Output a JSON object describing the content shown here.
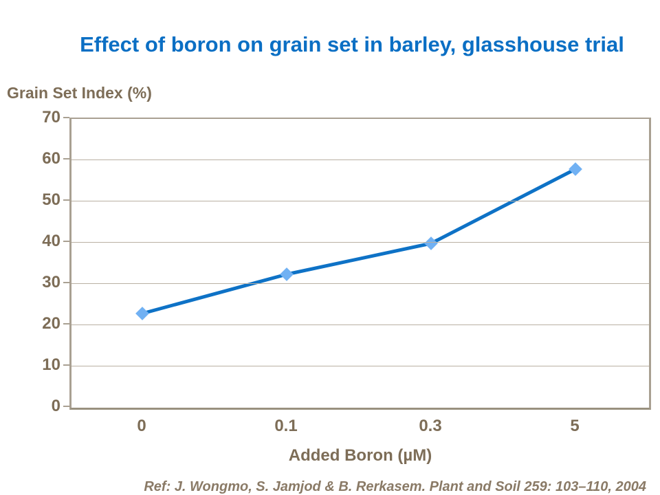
{
  "slide": {
    "title": "Effect of boron on grain set in barley, glasshouse trial",
    "reference": "Ref: J. Wongmo, S. Jamjod & B. Rerkasem. Plant and Soil 259: 103–110, 2004"
  },
  "chart_data": {
    "type": "line",
    "title": "Effect of boron on grain set in barley, glasshouse trial",
    "ylabel": "Grain Set Index (%)",
    "xlabel": "Added Boron (µM)",
    "categories": [
      "0",
      "0.1",
      "0.3",
      "5"
    ],
    "series": [
      {
        "name": "Grain Set Index",
        "values": [
          22.5,
          32,
          39.5,
          57.5
        ]
      }
    ],
    "ylim": [
      0,
      70
    ],
    "yticks": [
      0,
      10,
      20,
      30,
      40,
      50,
      60,
      70
    ],
    "grid": "horizontal-only",
    "legend": "none",
    "marker": "diamond"
  },
  "colors": {
    "title_blue": "#0B6FC4",
    "line_blue": "#0E72C6",
    "marker_blue": "#71B1F3",
    "axis_text_brown": "#7D6D57",
    "ref_brown": "#8A7A66",
    "axis_line": "#A9A092",
    "axis_line_dark": "#99917F",
    "gridline": "#B9B0A2"
  }
}
